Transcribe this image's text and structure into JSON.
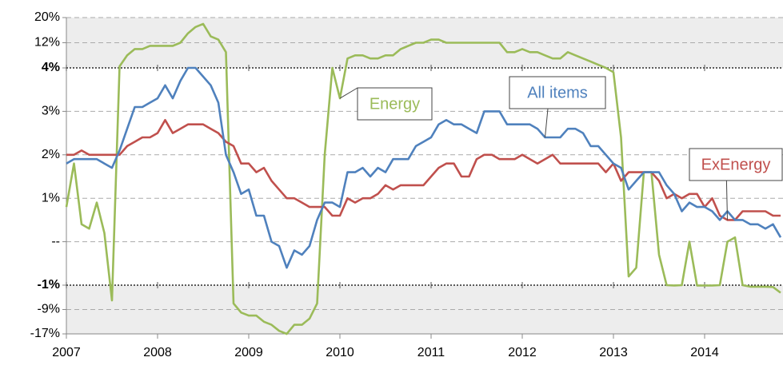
{
  "chart_data": {
    "type": "line",
    "categories": [
      "2007",
      null,
      null,
      null,
      null,
      null,
      null,
      null,
      null,
      null,
      null,
      null,
      "2008",
      null,
      null,
      null,
      null,
      null,
      null,
      null,
      null,
      null,
      null,
      null,
      "2009",
      null,
      null,
      null,
      null,
      null,
      null,
      null,
      null,
      null,
      null,
      null,
      "2010",
      null,
      null,
      null,
      null,
      null,
      null,
      null,
      null,
      null,
      null,
      null,
      "2011",
      null,
      null,
      null,
      null,
      null,
      null,
      null,
      null,
      null,
      null,
      null,
      "2012",
      null,
      null,
      null,
      null,
      null,
      null,
      null,
      null,
      null,
      null,
      null,
      "2013",
      null,
      null,
      null,
      null,
      null,
      null,
      null,
      null,
      null,
      null,
      null,
      "2014",
      null,
      null,
      null,
      null,
      null,
      null,
      null,
      null,
      null,
      null
    ],
    "series": [
      {
        "name": "Energy",
        "color": "#9bbb59",
        "values": [
          0.8,
          1.8,
          0.4,
          0.3,
          0.9,
          0.2,
          -6,
          4.5,
          8,
          10,
          10,
          11,
          11,
          11,
          11,
          12,
          15,
          17,
          18,
          14,
          13,
          9,
          -7,
          -10,
          -11,
          -11,
          -13,
          -14,
          -16,
          -17,
          -14,
          -14,
          -12,
          -7,
          2,
          4,
          3.3,
          7,
          8,
          8,
          7,
          7,
          8,
          8,
          10,
          11,
          12,
          12,
          13,
          13,
          12,
          12,
          12,
          12,
          12,
          12,
          12,
          12,
          9,
          9,
          10,
          9,
          9,
          8,
          7,
          7,
          9,
          8,
          7,
          6,
          5,
          4,
          3.9,
          2.4,
          -0.8,
          -0.6,
          1.6,
          1.6,
          -0.3,
          -1.0,
          -1.1,
          -1.0,
          0.0,
          -1.1,
          -1.1,
          -1.1,
          -1.0,
          0.0,
          0.1,
          -1.0,
          -1.5,
          -1.5,
          -1.5,
          -1.6,
          -3.5
        ]
      },
      {
        "name": "ExEnergy",
        "color": "#c0504d",
        "values": [
          2.0,
          2.0,
          2.1,
          2.0,
          2.0,
          2.0,
          2.0,
          2.0,
          2.2,
          2.3,
          2.4,
          2.4,
          2.5,
          2.8,
          2.5,
          2.6,
          2.7,
          2.7,
          2.7,
          2.6,
          2.5,
          2.3,
          2.2,
          1.8,
          1.8,
          1.6,
          1.7,
          1.4,
          1.2,
          1.0,
          1.0,
          0.9,
          0.8,
          0.8,
          0.8,
          0.6,
          0.6,
          1.0,
          0.9,
          1.0,
          1.0,
          1.1,
          1.3,
          1.2,
          1.3,
          1.3,
          1.3,
          1.3,
          1.5,
          1.7,
          1.8,
          1.8,
          1.5,
          1.5,
          1.9,
          2.0,
          2.0,
          1.9,
          1.9,
          1.9,
          2.0,
          1.9,
          1.8,
          1.9,
          2.0,
          1.8,
          1.8,
          1.8,
          1.8,
          1.8,
          1.8,
          1.6,
          1.8,
          1.4,
          1.6,
          1.6,
          1.6,
          1.6,
          1.4,
          1.0,
          1.1,
          1.0,
          1.1,
          1.1,
          0.8,
          1.0,
          0.6,
          0.5,
          0.5,
          0.7,
          0.7,
          0.7,
          0.7,
          0.6,
          0.6
        ]
      },
      {
        "name": "All items",
        "color": "#4f81bd",
        "values": [
          1.8,
          1.9,
          1.9,
          1.9,
          1.9,
          1.8,
          1.7,
          2.1,
          2.6,
          3.1,
          3.1,
          3.2,
          3.3,
          3.6,
          3.3,
          3.7,
          4.0,
          4.0,
          3.8,
          3.6,
          3.2,
          2.0,
          1.6,
          1.1,
          1.2,
          0.6,
          0.6,
          0.0,
          -0.1,
          -0.6,
          -0.2,
          -0.3,
          -0.1,
          0.5,
          0.9,
          0.9,
          0.8,
          1.6,
          1.6,
          1.7,
          1.5,
          1.7,
          1.6,
          1.9,
          1.9,
          1.9,
          2.2,
          2.3,
          2.4,
          2.7,
          2.8,
          2.7,
          2.7,
          2.6,
          2.5,
          3.0,
          3.0,
          3.0,
          2.7,
          2.7,
          2.7,
          2.7,
          2.6,
          2.4,
          2.4,
          2.4,
          2.6,
          2.6,
          2.5,
          2.2,
          2.2,
          2.0,
          1.8,
          1.7,
          1.2,
          1.4,
          1.6,
          1.6,
          1.6,
          1.3,
          1.1,
          0.7,
          0.9,
          0.8,
          0.8,
          0.7,
          0.5,
          0.7,
          0.5,
          0.5,
          0.4,
          0.4,
          0.3,
          0.4,
          0.1
        ]
      }
    ],
    "ylim": [
      -17,
      20
    ],
    "axis_breaks": [
      -1,
      4
    ],
    "yticks": [
      {
        "value": 20,
        "label": "20%"
      },
      {
        "value": 12,
        "label": "12%"
      },
      {
        "value": 4,
        "label": "4%"
      },
      {
        "value": 3,
        "label": "3%"
      },
      {
        "value": 2,
        "label": "2%"
      },
      {
        "value": 1,
        "label": "1%"
      },
      {
        "value": 0,
        "label": "--"
      },
      {
        "value": -1,
        "label": "-1%"
      },
      {
        "value": -9,
        "label": "-9%"
      },
      {
        "value": -17,
        "label": "-17%"
      }
    ],
    "grid": true,
    "annotations": [
      {
        "text": "Energy"
      },
      {
        "text": "All items"
      },
      {
        "text": "ExEnergy"
      }
    ]
  }
}
